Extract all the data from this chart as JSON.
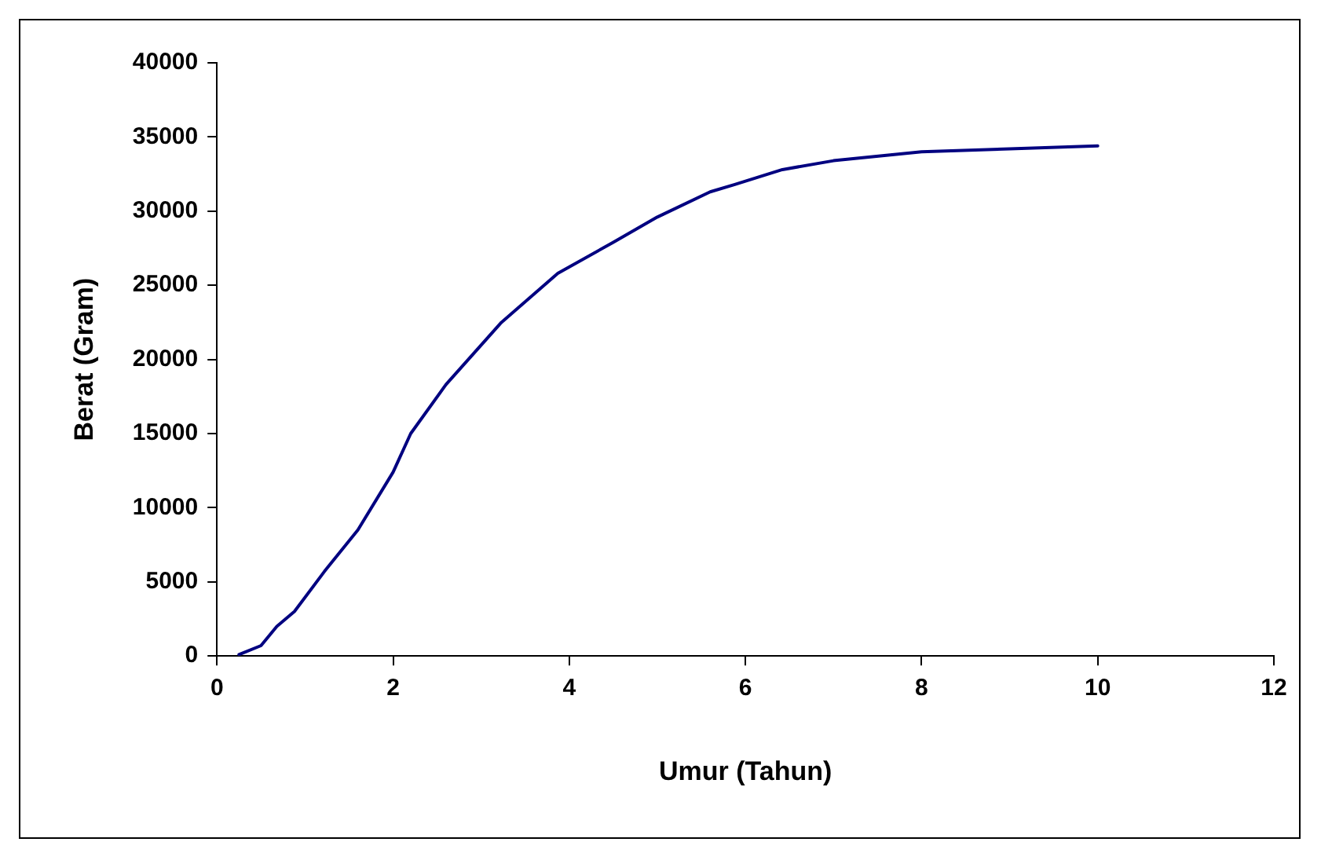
{
  "chart_data": {
    "type": "line",
    "xlabel": "Umur (Tahun)",
    "ylabel": "Berat (Gram)",
    "x": [
      0.25,
      0.5,
      0.68,
      0.88,
      1.22,
      1.6,
      2.0,
      2.2,
      2.6,
      3.23,
      3.87,
      4.5,
      5.0,
      5.6,
      5.88,
      6.42,
      7.0,
      8.0,
      9.0,
      10.0
    ],
    "series": [
      {
        "color": "#000080",
        "values": [
          100,
          700,
          2000,
          3000,
          5700,
          8500,
          12400,
          15000,
          18300,
          22500,
          25800,
          27900,
          29600,
          31300,
          31800,
          32800,
          33400,
          34000,
          34200,
          34400
        ]
      }
    ],
    "xlim": [
      0,
      12
    ],
    "xticks": [
      0,
      2,
      4,
      6,
      8,
      10,
      12
    ],
    "ylim": [
      0,
      40000
    ],
    "yticks": [
      0,
      5000,
      10000,
      15000,
      20000,
      25000,
      30000,
      35000,
      40000
    ],
    "grid": false,
    "legend": false,
    "marker": "none",
    "line_style": "solid"
  }
}
